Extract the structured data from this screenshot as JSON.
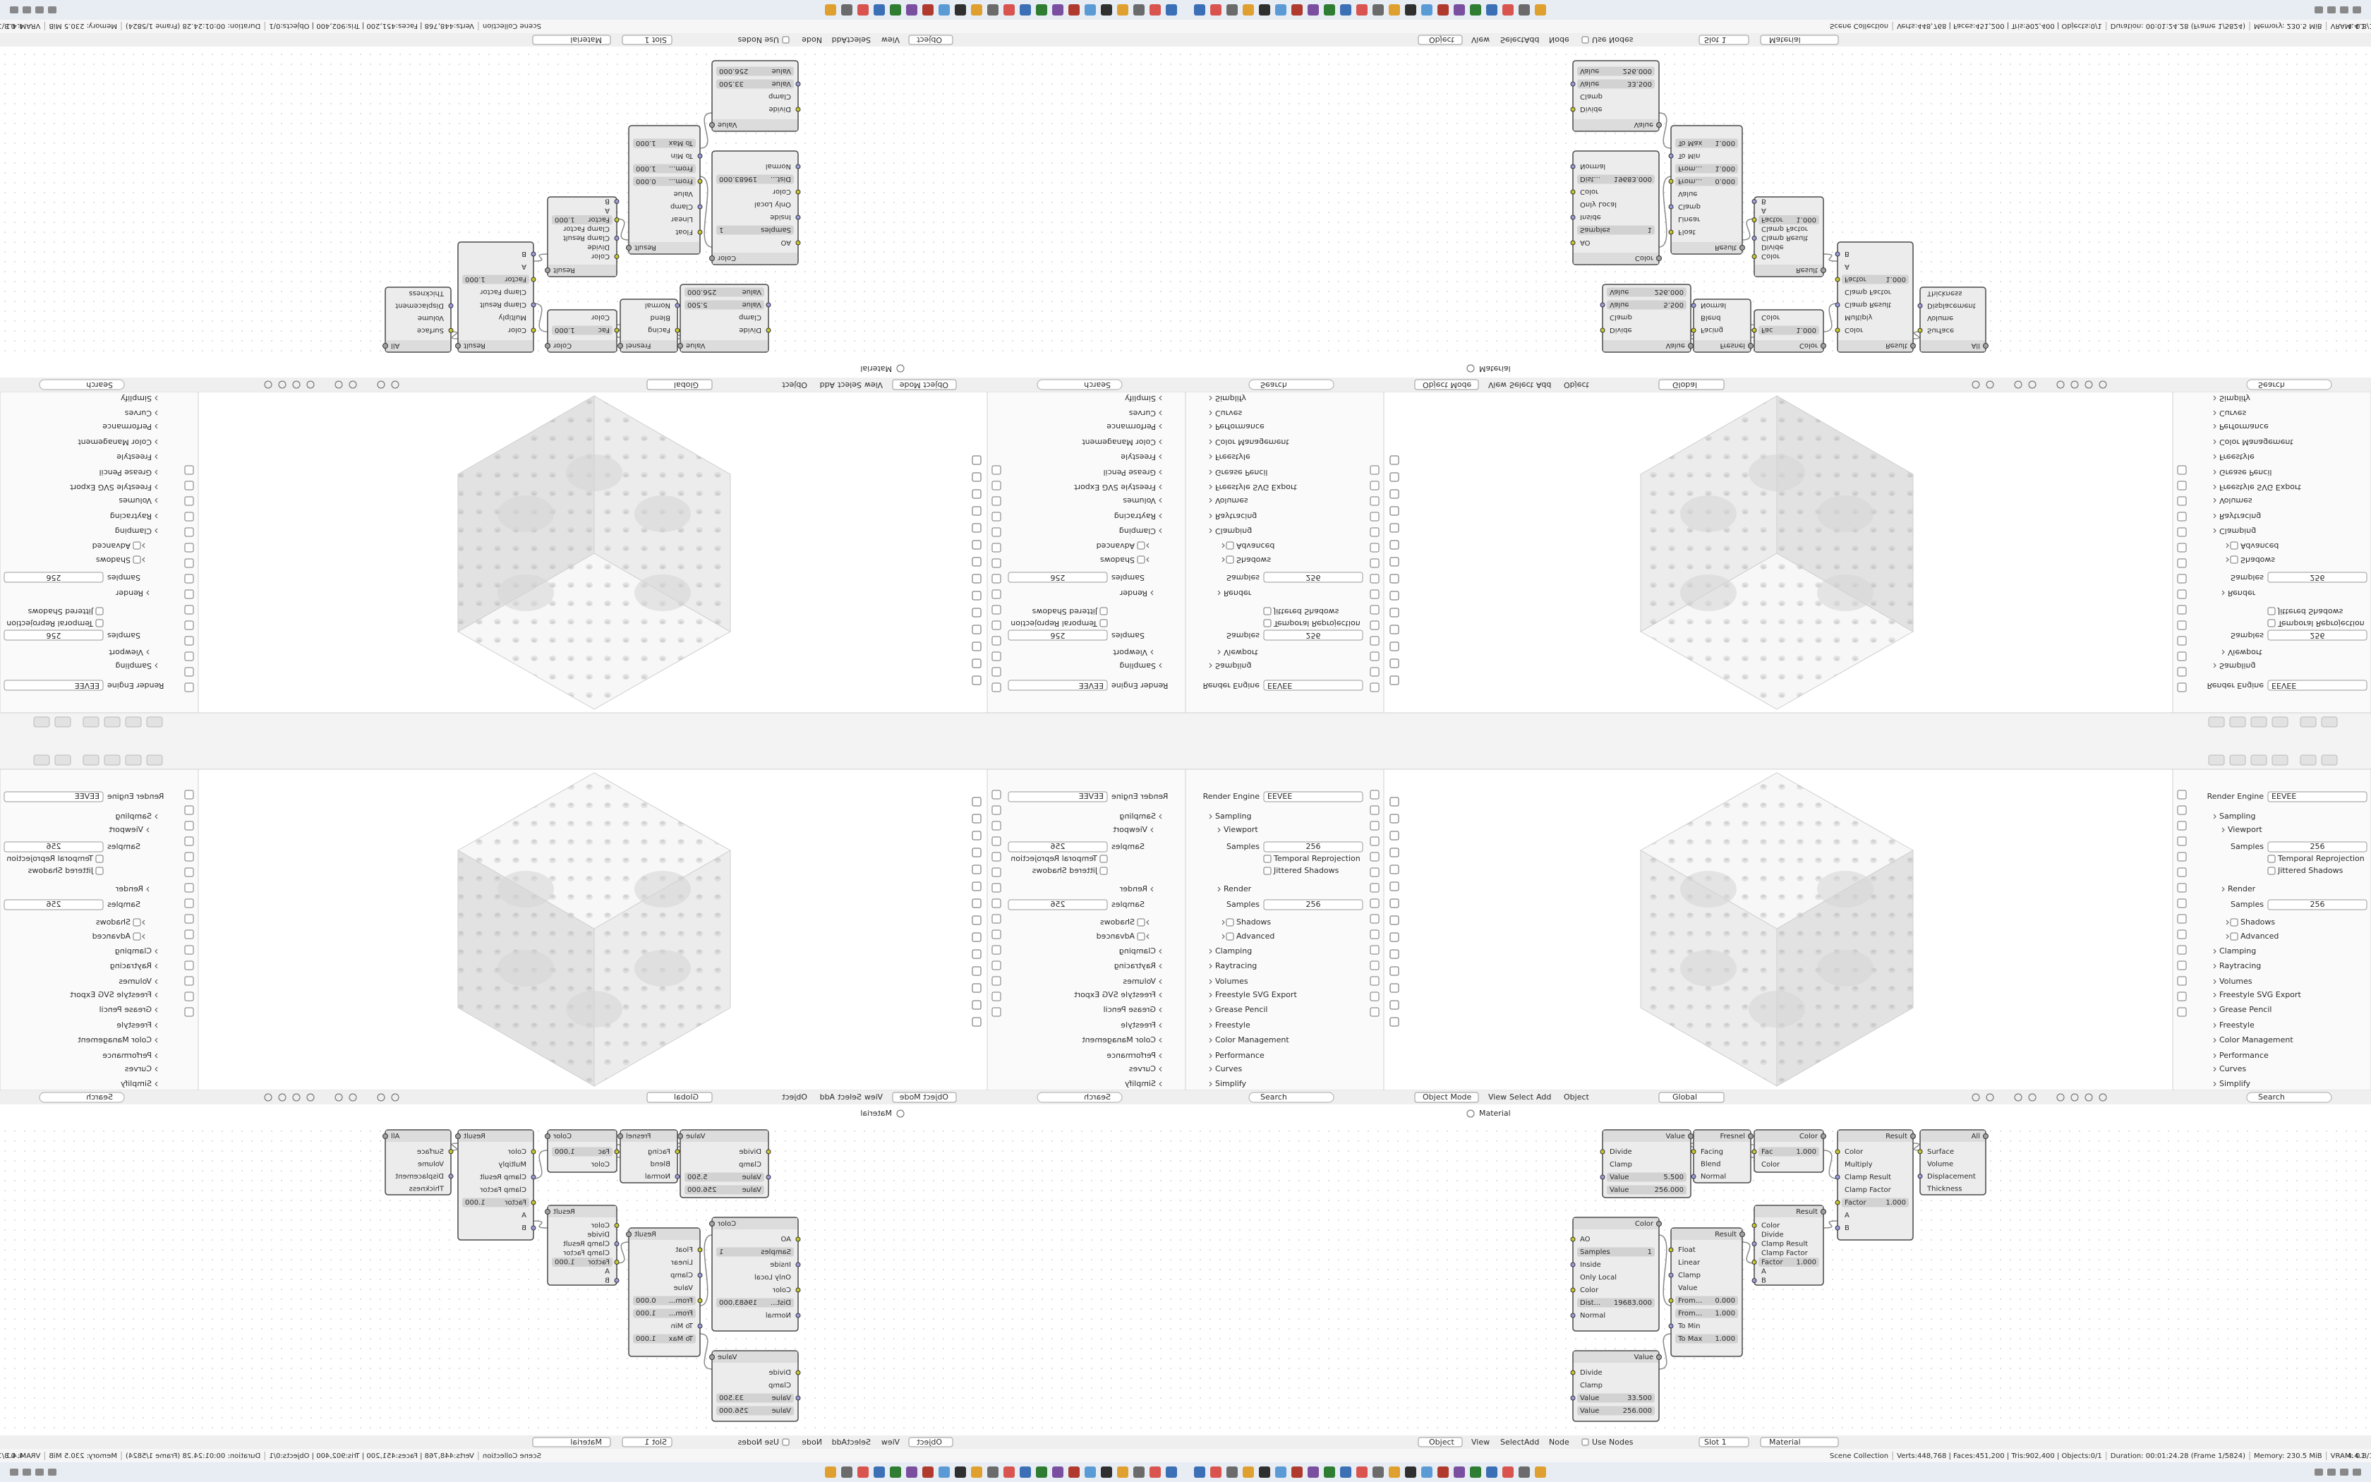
{
  "viewport_header": {
    "mode": "Object Mode",
    "menus": [
      "View",
      "Select",
      "Add",
      "Object"
    ],
    "orientation": "Global"
  },
  "properties": {
    "search": "Search",
    "rows": [
      {
        "label": "Render Engine",
        "value": "EEVEE"
      },
      "Sampling",
      "Viewport",
      {
        "label": "Samples",
        "value": 256
      },
      {
        "checkbox": "Temporal Reprojection"
      },
      {
        "checkbox": "Jittered Shadows"
      },
      "Render",
      {
        "label": "Samples",
        "value": 256
      },
      "Shadows",
      "Advanced",
      "Clamping",
      "Raytracing",
      "Volumes",
      "Freestyle SVG Export",
      "Grease Pencil",
      "Freestyle",
      "Color Management",
      "Performance",
      "Curves",
      "Simplify"
    ]
  },
  "node_editor": {
    "breadcrumb": "Material",
    "header": {
      "editor": "Object",
      "menus": [
        "View",
        "Select",
        "Add",
        "Node"
      ],
      "use_nodes": "Use Nodes",
      "slot": "Slot 1",
      "material": "Material"
    },
    "nodes": [
      {
        "title": "Value",
        "rows": [
          "Divide",
          "Clamp",
          {
            "label": "Value",
            "value": "5.500"
          },
          {
            "label": "Value",
            "value": "256.000"
          }
        ]
      },
      {
        "title": "Fresnel",
        "rows": [
          "Facing",
          "Blend",
          "Normal"
        ]
      },
      {
        "title": "Color",
        "rows": [
          {
            "label": "Fac",
            "value": "1.000"
          },
          "Color"
        ]
      },
      {
        "title": "Result",
        "rows": [
          "Color",
          "Multiply",
          "Clamp Result",
          "Clamp Factor",
          {
            "label": "Factor",
            "value": "1.000"
          },
          "A",
          "B"
        ]
      },
      {
        "title": "All",
        "rows": [
          "Surface",
          "Volume",
          "Displacement",
          "Thickness"
        ]
      },
      {
        "title": "Result",
        "rows": [
          "Color",
          "Divide",
          "Clamp Result",
          "Clamp Factor",
          {
            "label": "Factor",
            "value": "1.000"
          },
          "A",
          "B"
        ]
      },
      {
        "title": "Result",
        "rows": [
          "Float",
          "Linear",
          "Clamp",
          "Value",
          {
            "label": "From...",
            "value": "0.000"
          },
          {
            "label": "From...",
            "value": "1.000"
          },
          "To Min",
          {
            "label": "To Max",
            "value": "1.000"
          }
        ]
      },
      {
        "title": "Color",
        "rows": [
          "AO",
          {
            "label": "Samples",
            "value": "1"
          },
          "Inside",
          "Only Local",
          "Color",
          {
            "label": "Dist...",
            "value": "19683.000"
          },
          "Normal"
        ]
      },
      {
        "title": "Value",
        "rows": [
          "Divide",
          "Clamp",
          {
            "label": "Value",
            "value": "33.500"
          },
          {
            "label": "Value",
            "value": "256.000"
          }
        ]
      }
    ]
  },
  "status_bar": {
    "collection": "Scene Collection",
    "stats": "Verts:448,768 | Faces:451,200 | Tris:902,400 | Objects:0/1",
    "duration": "Duration: 00:01:24.28 (Frame 1/5824)",
    "memory": "Memory: 230.5 MiB",
    "vram": "VRAM: 0.8/1.0 GiB",
    "version": "4.4.1"
  }
}
